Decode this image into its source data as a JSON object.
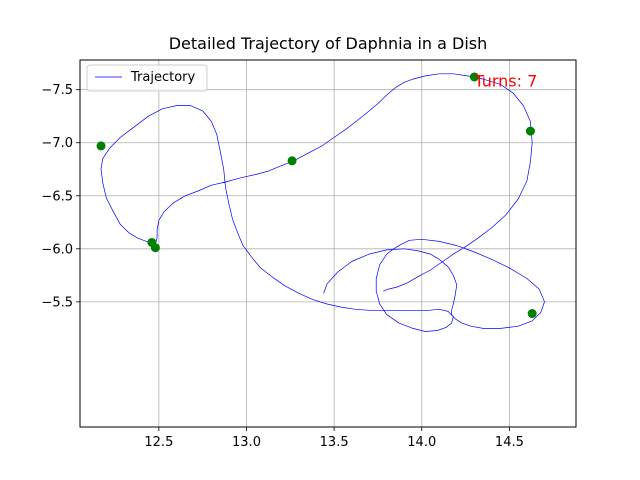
{
  "chart_data": {
    "type": "line",
    "title": "Detailed Trajectory of Daphnia in a Dish",
    "xlabel": "",
    "ylabel": "",
    "xlim": [
      12.05,
      14.88
    ],
    "ylim": [
      -4.32,
      -7.78
    ],
    "y_inverted": true,
    "grid": true,
    "legend_position": "upper left",
    "xticks": [
      12.5,
      13.0,
      13.5,
      14.0,
      14.5
    ],
    "xtick_labels": [
      "12.5",
      "13.0",
      "13.5",
      "14.0",
      "14.5"
    ],
    "yticks": [
      -7.5,
      -7.0,
      -6.5,
      -6.0,
      -5.5
    ],
    "ytick_labels": [
      "−7.5",
      "−7.0",
      "−6.5",
      "−6.0",
      "−5.5"
    ],
    "series": [
      {
        "name": "Trajectory",
        "color": "#0000ff",
        "x": [
          13.44,
          13.46,
          13.52,
          13.6,
          13.7,
          13.8,
          13.9,
          13.98,
          14.05,
          14.1,
          14.15,
          14.18,
          14.2,
          14.19,
          14.18,
          14.17,
          14.17,
          14.19,
          14.23,
          14.28,
          14.35,
          14.45,
          14.55,
          14.63,
          14.68,
          14.7,
          14.67,
          14.6,
          14.5,
          14.4,
          14.3,
          14.2,
          14.1,
          14.0,
          13.93,
          13.88,
          13.84,
          13.8,
          13.76,
          13.74,
          13.74,
          13.76,
          13.8,
          13.87,
          13.95,
          14.02,
          14.09,
          14.14,
          14.17,
          14.18,
          14.15,
          14.1,
          14.04,
          13.96,
          13.9,
          13.84,
          13.8,
          13.75,
          13.7,
          13.62,
          13.54,
          13.46,
          13.38,
          13.3,
          13.22,
          13.15,
          13.08,
          13.03,
          12.98,
          12.95,
          12.92,
          12.9,
          12.88,
          12.87,
          12.85,
          12.83,
          12.8,
          12.75,
          12.68,
          12.6,
          12.52,
          12.44,
          12.36,
          12.28,
          12.22,
          12.18,
          12.17,
          12.18,
          12.2,
          12.24,
          12.28,
          12.33,
          12.38,
          12.43,
          12.46,
          12.48,
          12.49,
          12.49,
          12.5,
          12.53,
          12.58,
          12.65,
          12.73,
          12.8,
          12.88,
          12.97,
          13.05,
          13.12,
          13.18,
          13.27,
          13.35,
          13.43,
          13.5,
          13.57,
          13.64,
          13.7,
          13.75,
          13.8,
          13.85,
          13.9,
          13.95,
          14.02,
          14.1,
          14.18,
          14.26,
          14.3,
          14.35,
          14.45,
          14.52,
          14.58,
          14.62,
          14.63,
          14.62,
          14.6,
          14.55,
          14.48,
          14.4,
          14.32,
          14.25,
          14.18,
          14.12,
          14.05,
          13.98,
          13.92,
          13.86,
          13.81,
          13.78
        ],
        "y": [
          -5.58,
          -5.67,
          -5.78,
          -5.88,
          -5.95,
          -5.99,
          -6.0,
          -5.98,
          -5.95,
          -5.9,
          -5.83,
          -5.75,
          -5.66,
          -5.56,
          -5.48,
          -5.42,
          -5.38,
          -5.34,
          -5.3,
          -5.27,
          -5.25,
          -5.25,
          -5.27,
          -5.32,
          -5.4,
          -5.5,
          -5.62,
          -5.72,
          -5.82,
          -5.9,
          -5.97,
          -6.03,
          -6.07,
          -6.09,
          -6.08,
          -6.04,
          -6.0,
          -5.95,
          -5.85,
          -5.72,
          -5.6,
          -5.48,
          -5.38,
          -5.3,
          -5.25,
          -5.22,
          -5.23,
          -5.26,
          -5.3,
          -5.36,
          -5.41,
          -5.43,
          -5.42,
          -5.42,
          -5.42,
          -5.42,
          -5.42,
          -5.42,
          -5.42,
          -5.43,
          -5.45,
          -5.48,
          -5.52,
          -5.58,
          -5.65,
          -5.73,
          -5.82,
          -5.92,
          -6.03,
          -6.15,
          -6.28,
          -6.42,
          -6.58,
          -6.75,
          -6.92,
          -7.08,
          -7.2,
          -7.3,
          -7.35,
          -7.35,
          -7.32,
          -7.25,
          -7.15,
          -7.05,
          -6.95,
          -6.85,
          -6.75,
          -6.62,
          -6.48,
          -6.35,
          -6.23,
          -6.15,
          -6.1,
          -6.07,
          -6.05,
          -6.05,
          -6.1,
          -6.18,
          -6.27,
          -6.35,
          -6.43,
          -6.5,
          -6.55,
          -6.6,
          -6.63,
          -6.67,
          -6.7,
          -6.73,
          -6.77,
          -6.83,
          -6.9,
          -6.97,
          -7.05,
          -7.13,
          -7.22,
          -7.3,
          -7.37,
          -7.45,
          -7.52,
          -7.57,
          -7.6,
          -7.63,
          -7.65,
          -7.65,
          -7.63,
          -7.62,
          -7.6,
          -7.55,
          -7.47,
          -7.35,
          -7.2,
          -7.0,
          -6.82,
          -6.64,
          -6.47,
          -6.32,
          -6.2,
          -6.1,
          -6.02,
          -5.95,
          -5.88,
          -5.8,
          -5.74,
          -5.68,
          -5.64,
          -5.62,
          -5.6
        ]
      }
    ],
    "markers": {
      "color": "#008000",
      "x": [
        12.17,
        12.46,
        12.48,
        13.26,
        14.3,
        14.62,
        14.63
      ],
      "y": [
        -6.97,
        -6.06,
        -6.01,
        -6.83,
        -7.62,
        -7.11,
        -5.39
      ]
    },
    "annotation": {
      "text": "Turns: 7",
      "color": "#ff0000",
      "x": 14.3,
      "y": -7.5
    }
  }
}
